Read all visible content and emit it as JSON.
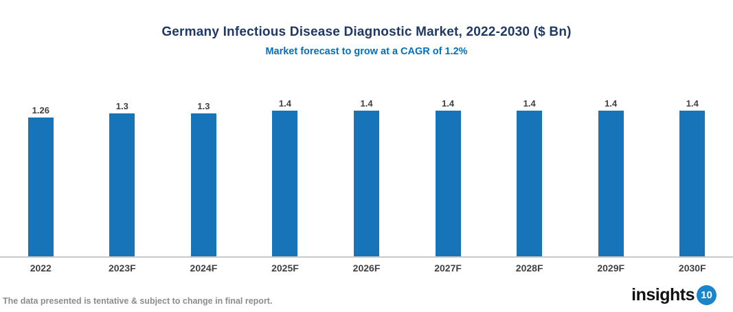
{
  "header": {
    "title": "Germany Infectious Disease Diagnostic Market, 2022-2030 ($ Bn)",
    "subtitle": "Market forecast to grow at a CAGR of 1.2%"
  },
  "chart_data": {
    "type": "bar",
    "categories": [
      "2022",
      "2023F",
      "2024F",
      "2025F",
      "2026F",
      "2027F",
      "2028F",
      "2029F",
      "2030F"
    ],
    "values": [
      1.26,
      1.3,
      1.3,
      1.4,
      1.4,
      1.4,
      1.4,
      1.4,
      1.4
    ],
    "value_labels": [
      "1.26",
      "1.3",
      "1.3",
      "1.4",
      "1.4",
      "1.4",
      "1.4",
      "1.4",
      "1.4"
    ],
    "title": "Germany Infectious Disease Diagnostic Market, 2022-2030 ($ Bn)",
    "subtitle": "Market forecast to grow at a CAGR of 1.2%",
    "xlabel": "",
    "ylabel": "",
    "ylim": [
      0,
      1.44
    ],
    "grid": false,
    "legend": "none",
    "bar_color": "#1874B8"
  },
  "footer": {
    "disclaimer": "The data presented is tentative & subject to change in final report.",
    "logo_text": "insights",
    "logo_badge": "10"
  },
  "colors": {
    "title": "#1F3864",
    "subtitle": "#0070C0",
    "bar": "#1874B8",
    "data_label": "#404040",
    "axis_line": "#C9C9C9",
    "footer_text": "#8C8C8C",
    "logo_badge_bg": "#1A85C8"
  }
}
